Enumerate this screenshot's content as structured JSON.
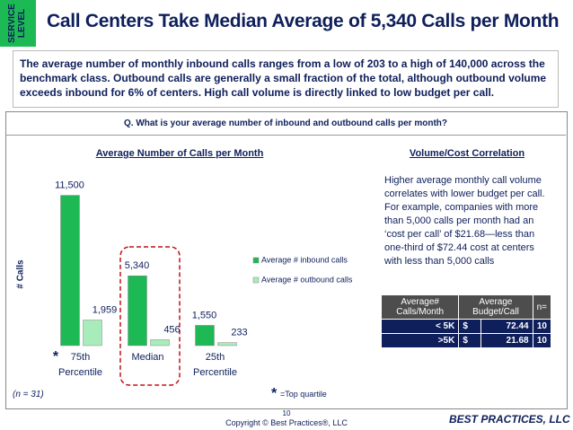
{
  "section_tab": "SERVICE LEVEL",
  "title": "Call Centers Take Median Average of 5,340 Calls per Month",
  "intro": "The average number of  monthly inbound calls ranges from a low of 203 to a high of 140,000 across the benchmark class.  Outbound calls are generally a small fraction of the total, although outbound volume exceeds inbound for 6% of centers.  High call volume is directly linked to low budget per call.",
  "question": "Q. What is your average number of  inbound and outbound calls per month?",
  "chart_data": {
    "type": "bar",
    "title": "Average Number of Calls per Month",
    "y_label": "# Calls",
    "categories": [
      "75th Percentile",
      "Median",
      "25th Percentile"
    ],
    "series": [
      {
        "name": "Average # inbound calls",
        "color": "#1db954",
        "values": [
          11500,
          5340,
          1550
        ],
        "value_labels": [
          "11,500",
          "5,340",
          "1,550"
        ]
      },
      {
        "name": "Average # outbound calls",
        "color": "#a8ecbc",
        "values": [
          1959,
          456,
          233
        ],
        "value_labels": [
          "1,959",
          "456",
          "233"
        ]
      }
    ],
    "ylim": [
      0,
      12500
    ],
    "grid": false,
    "legend": "right"
  },
  "right_panel": {
    "title": "Volume/Cost Correlation",
    "text": "Higher average monthly call volume correlates with lower budget per call. For example, companies with more than 5,000 calls per month had an ‘cost per call’ of $21.68—less than one-third of $72.44 cost at centers with less than 5,000 calls",
    "table": {
      "header": [
        "Average# Calls/Month",
        "Average Budget/Call",
        "n="
      ],
      "rows": [
        [
          "< 5K",
          "$",
          72.44,
          10
        ],
        [
          ">5K",
          "$",
          21.68,
          10
        ]
      ]
    }
  },
  "star": "*",
  "footnote": "=Top quartile",
  "sample": "(n = 31)",
  "page_number": "10",
  "copyright": "Copyright ©  Best Practices®, LLC",
  "logo": "BEST PRACTICES, LLC"
}
